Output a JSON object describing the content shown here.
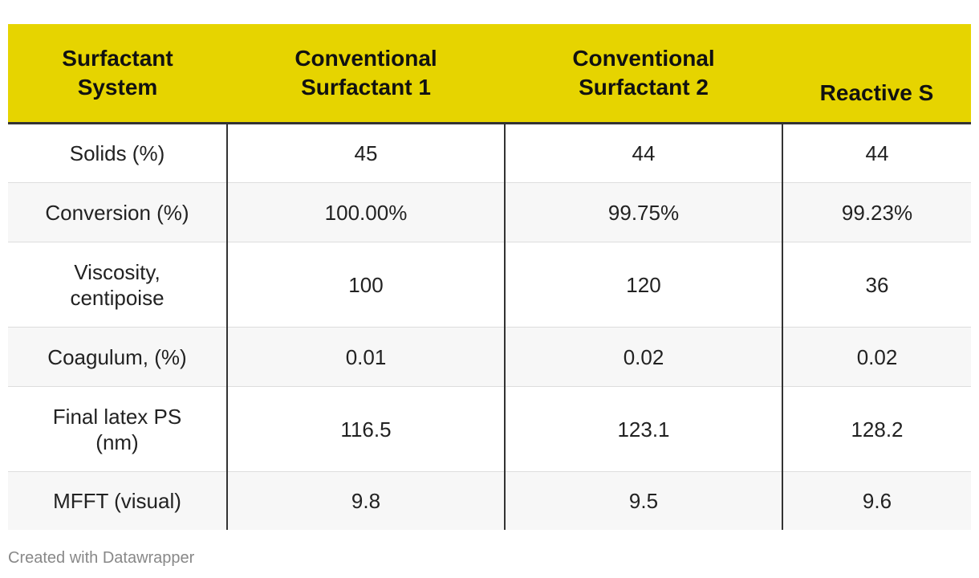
{
  "table": {
    "headers": [
      [
        "Surfactant",
        "System"
      ],
      [
        "Conventional",
        "Surfactant 1"
      ],
      [
        "Conventional",
        "Surfactant 2"
      ],
      [
        "Reactive S"
      ]
    ],
    "rows": [
      {
        "label": [
          "Solids (%)"
        ],
        "values": [
          "45",
          "44",
          "44"
        ]
      },
      {
        "label": [
          "Conversion (%)"
        ],
        "values": [
          "100.00%",
          "99.75%",
          "99.23%"
        ]
      },
      {
        "label": [
          "Viscosity,",
          "centipoise"
        ],
        "values": [
          "100",
          "120",
          "36"
        ]
      },
      {
        "label": [
          "Coagulum, (%)"
        ],
        "values": [
          "0.01",
          "0.02",
          "0.02"
        ]
      },
      {
        "label": [
          "Final latex PS",
          "(nm)"
        ],
        "values": [
          "116.5",
          "123.1",
          "128.2"
        ]
      },
      {
        "label": [
          "MFFT (visual)"
        ],
        "values": [
          "9.8",
          "9.5",
          "9.6"
        ]
      }
    ]
  },
  "footer": {
    "credit": "Created with Datawrapper"
  },
  "colors": {
    "header_bg": "#e6d400",
    "row_alt_bg": "#f7f7f7",
    "divider": "#333333"
  }
}
